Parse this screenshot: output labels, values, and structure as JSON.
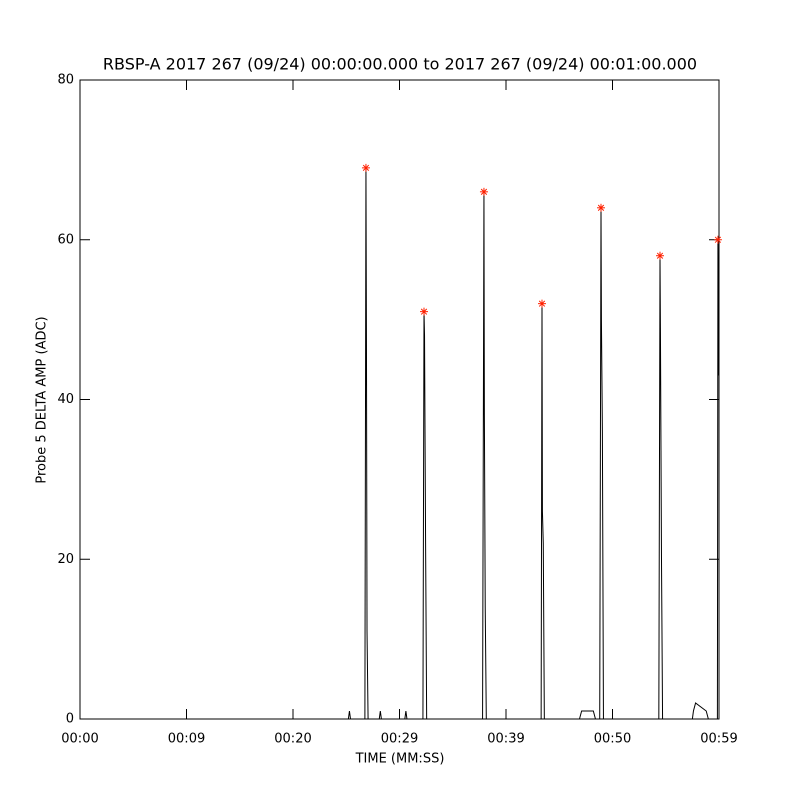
{
  "chart_data": {
    "type": "line",
    "title": "RBSP-A 2017 267 (09/24) 00:00:00.000 to 2017 267 (09/24) 00:01:00.000",
    "xlabel": "TIME (MM:SS)",
    "ylabel": "Probe 5 DELTA AMP (ADC)",
    "xlim": [
      0,
      60
    ],
    "ylim": [
      0,
      80
    ],
    "xticks": [
      {
        "value": 0,
        "label": "00:00"
      },
      {
        "value": 10,
        "label": "00:09"
      },
      {
        "value": 20,
        "label": "00:20"
      },
      {
        "value": 30,
        "label": "00:29"
      },
      {
        "value": 40,
        "label": "00:39"
      },
      {
        "value": 50,
        "label": "00:50"
      },
      {
        "value": 60,
        "label": "00:59"
      }
    ],
    "yticks": [
      0,
      20,
      40,
      60,
      80
    ],
    "series": [
      {
        "color": "#000000",
        "x": [
          0,
          25.2,
          25.3,
          25.4,
          26.75,
          26.85,
          26.9,
          26.95,
          27.05,
          28.1,
          28.2,
          28.3,
          30.5,
          30.6,
          30.7,
          32.2,
          32.3,
          32.35,
          32.45,
          32.55,
          37.8,
          37.93,
          37.97,
          38.05,
          38.15,
          43.3,
          43.38,
          43.42,
          43.5,
          43.6,
          46.9,
          47.1,
          48.2,
          48.4,
          48.8,
          48.92,
          48.96,
          49.05,
          49.15,
          54.35,
          54.46,
          54.5,
          54.6,
          54.7,
          57.5,
          57.6,
          57.8,
          58.8,
          59.0,
          59.85,
          59.9,
          59.95,
          60
        ],
        "values": [
          0,
          0,
          1,
          0,
          0,
          69,
          46,
          11,
          0,
          0,
          1,
          0,
          0,
          1,
          0,
          0,
          51,
          48,
          22,
          0,
          0,
          66,
          38,
          14,
          0,
          0,
          52,
          26,
          22,
          0,
          0,
          1,
          1,
          0,
          0,
          64,
          50,
          36,
          0,
          0,
          58,
          49,
          20,
          0,
          0,
          1,
          2,
          1,
          0,
          0,
          60,
          43,
          52
        ]
      },
      {
        "color": "#ff2000",
        "marker": "asterisk",
        "x": [
          26.85,
          32.3,
          37.93,
          43.38,
          48.92,
          54.46,
          59.9
        ],
        "values": [
          69,
          51,
          66,
          52,
          64,
          58,
          60
        ]
      }
    ]
  }
}
